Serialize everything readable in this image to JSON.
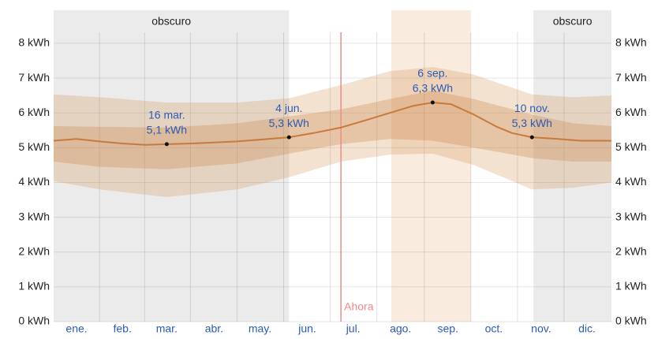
{
  "chart_data": {
    "type": "band_line",
    "xlim": [
      0,
      365
    ],
    "ylim": [
      0,
      8.95
    ],
    "yticks": [
      {
        "value": 0,
        "label": "0 kWh"
      },
      {
        "value": 1,
        "label": "1 kWh"
      },
      {
        "value": 2,
        "label": "2 kWh"
      },
      {
        "value": 3,
        "label": "3 kWh"
      },
      {
        "value": 4,
        "label": "4 kWh"
      },
      {
        "value": 5,
        "label": "5 kWh"
      },
      {
        "value": 6,
        "label": "6 kWh"
      },
      {
        "value": 7,
        "label": "7 kWh"
      },
      {
        "value": 8,
        "label": "8 kWh"
      }
    ],
    "xticks": [
      {
        "value": 15,
        "label": "ene."
      },
      {
        "value": 45,
        "label": "feb."
      },
      {
        "value": 74,
        "label": "mar."
      },
      {
        "value": 105,
        "label": "abr."
      },
      {
        "value": 135,
        "label": "may."
      },
      {
        "value": 166,
        "label": "jun."
      },
      {
        "value": 196,
        "label": "jul."
      },
      {
        "value": 227,
        "label": "ago."
      },
      {
        "value": 258,
        "label": "sep."
      },
      {
        "value": 288,
        "label": "oct."
      },
      {
        "value": 319,
        "label": "nov."
      },
      {
        "value": 349,
        "label": "dic."
      }
    ],
    "grid": true,
    "regions": [
      {
        "label": "obscuro",
        "start": 0,
        "end": 154,
        "color": "#ebebeb"
      },
      {
        "start": 221,
        "end": 273,
        "color": "#f9ebdd"
      },
      {
        "label": "obscuro",
        "start": 314,
        "end": 365,
        "color": "#ebebeb"
      }
    ],
    "now": {
      "label": "Ahora",
      "x": 188,
      "color": "#f08a8a"
    },
    "bands": [
      {
        "color": "rgba(214,150,90,0.28)",
        "x": [
          0,
          30,
          74,
          120,
          154,
          188,
          220,
          248,
          275,
          313,
          340,
          365
        ],
        "low": [
          4.04,
          3.8,
          3.58,
          3.8,
          4.15,
          4.6,
          4.8,
          4.83,
          4.5,
          3.8,
          3.85,
          4.0
        ],
        "high": [
          6.53,
          6.45,
          6.3,
          6.3,
          6.42,
          6.8,
          7.2,
          7.32,
          7.1,
          6.53,
          6.45,
          6.5
        ]
      },
      {
        "color": "rgba(200,130,70,0.3)",
        "x": [
          0,
          30,
          74,
          120,
          154,
          188,
          220,
          248,
          275,
          313,
          340,
          365
        ],
        "low": [
          4.6,
          4.45,
          4.38,
          4.55,
          4.83,
          5.1,
          5.25,
          5.2,
          5.0,
          4.7,
          4.6,
          4.6
        ],
        "high": [
          5.62,
          5.6,
          5.58,
          5.7,
          5.9,
          6.1,
          6.4,
          6.64,
          6.4,
          5.95,
          5.7,
          5.62
        ]
      }
    ],
    "line": {
      "color": "#c9793a",
      "x": [
        0,
        15,
        30,
        45,
        60,
        74,
        90,
        105,
        120,
        135,
        154,
        170,
        188,
        205,
        220,
        235,
        248,
        260,
        275,
        290,
        300,
        313,
        330,
        345,
        365
      ],
      "values": [
        5.2,
        5.25,
        5.18,
        5.12,
        5.08,
        5.1,
        5.12,
        5.15,
        5.18,
        5.23,
        5.3,
        5.42,
        5.58,
        5.8,
        6.0,
        6.2,
        6.3,
        6.25,
        5.95,
        5.6,
        5.42,
        5.3,
        5.25,
        5.2,
        5.2
      ]
    },
    "annotations": [
      {
        "x": 74,
        "y": 5.1,
        "date": "16 mar.",
        "value_label": "5,1 kWh"
      },
      {
        "x": 154,
        "y": 5.3,
        "date": "4 jun.",
        "value_label": "5,3 kWh"
      },
      {
        "x": 248,
        "y": 6.3,
        "date": "6 sep.",
        "value_label": "6,3 kWh"
      },
      {
        "x": 313,
        "y": 5.3,
        "date": "10 nov.",
        "value_label": "5,3 kWh"
      }
    ]
  }
}
